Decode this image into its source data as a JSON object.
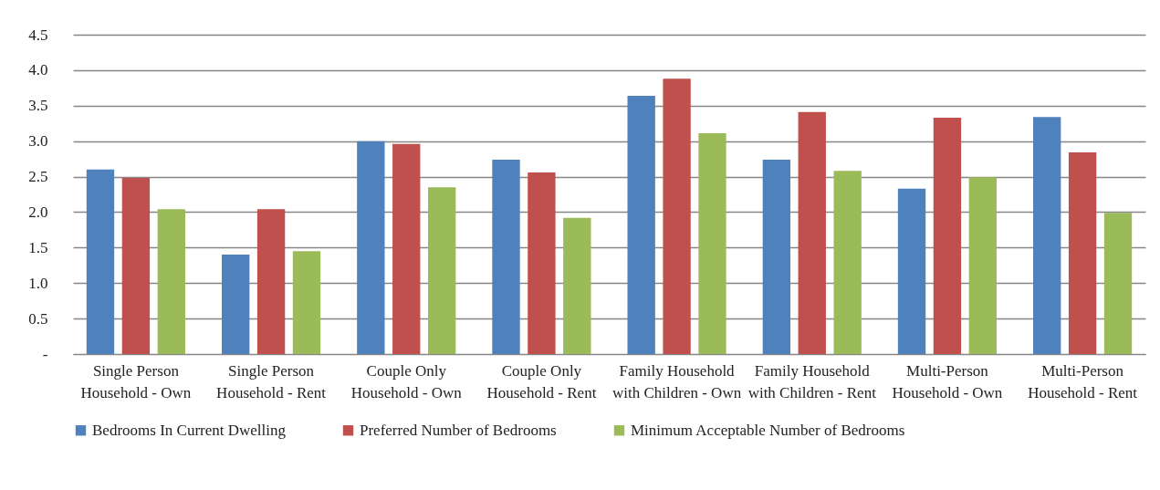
{
  "chart_data": {
    "type": "bar",
    "categories": [
      "Single Person Household - Own",
      "Single Person Household - Rent",
      "Couple Only Household - Own",
      "Couple Only Household - Rent",
      "Family Household with Children - Own",
      "Family Household with Children - Rent",
      "Multi-Person Household - Own",
      "Multi-Person Household - Rent"
    ],
    "series": [
      {
        "name": "Bedrooms In Current Dwelling",
        "color": "#4f81bd",
        "values": [
          2.6,
          1.4,
          3.0,
          2.74,
          3.64,
          2.74,
          2.33,
          3.34
        ]
      },
      {
        "name": "Preferred Number of Bedrooms",
        "color": "#c0504d",
        "values": [
          2.48,
          2.04,
          2.96,
          2.56,
          3.88,
          3.41,
          3.33,
          2.84
        ]
      },
      {
        "name": "Minimum Acceptable Number of Bedrooms",
        "color": "#9bbb59",
        "values": [
          2.04,
          1.45,
          2.35,
          1.92,
          3.11,
          2.58,
          2.49,
          1.99
        ]
      }
    ],
    "ylim": [
      0,
      4.5
    ],
    "yticks": [
      {
        "value": 0,
        "label": "-"
      },
      0.5,
      {
        "value": 1,
        "label": "1.0"
      },
      1.5,
      {
        "value": 2,
        "label": "2.0"
      },
      2.5,
      {
        "value": 3,
        "label": "3.0"
      },
      3.5,
      {
        "value": 4,
        "label": "4.0"
      },
      4.5
    ],
    "grid": "y",
    "legend": "bottom"
  }
}
